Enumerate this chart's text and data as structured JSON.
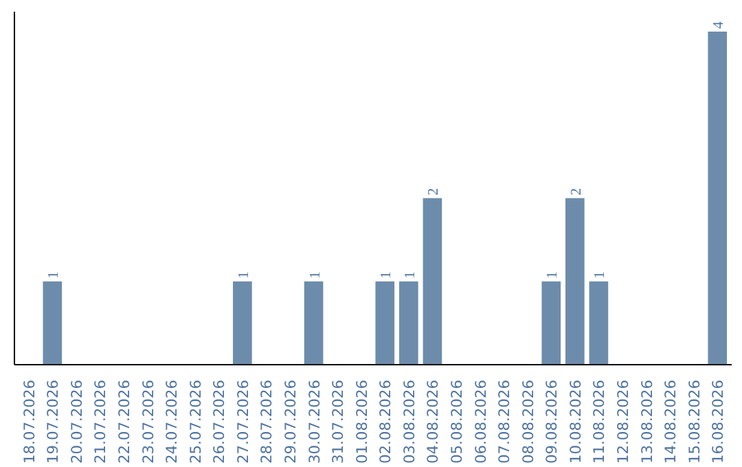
{
  "chart_data": {
    "type": "bar",
    "categories": [
      "18.07.2026",
      "19.07.2026",
      "20.07.2026",
      "21.07.2026",
      "22.07.2026",
      "23.07.2026",
      "24.07.2026",
      "25.07.2026",
      "26.07.2026",
      "27.07.2026",
      "28.07.2026",
      "29.07.2026",
      "30.07.2026",
      "31.07.2026",
      "01.08.2026",
      "02.08.2026",
      "03.08.2026",
      "04.08.2026",
      "05.08.2026",
      "06.08.2026",
      "07.08.2026",
      "08.08.2026",
      "09.08.2026",
      "10.08.2026",
      "11.08.2026",
      "12.08.2026",
      "13.08.2026",
      "14.08.2026",
      "15.08.2026",
      "16.08.2026"
    ],
    "values": [
      0,
      1,
      0,
      0,
      0,
      0,
      0,
      0,
      0,
      1,
      0,
      0,
      1,
      0,
      0,
      1,
      1,
      2,
      0,
      0,
      0,
      0,
      1,
      2,
      1,
      0,
      0,
      0,
      0,
      4
    ],
    "value_labels": [
      null,
      "1",
      null,
      null,
      null,
      null,
      null,
      null,
      null,
      "1",
      null,
      null,
      "1",
      null,
      null,
      "1",
      "1",
      "2",
      null,
      null,
      null,
      null,
      "1",
      "2",
      "1",
      null,
      null,
      null,
      null,
      "4"
    ],
    "color": "#6d8cab",
    "grid": false,
    "tick_labels": "x"
  }
}
